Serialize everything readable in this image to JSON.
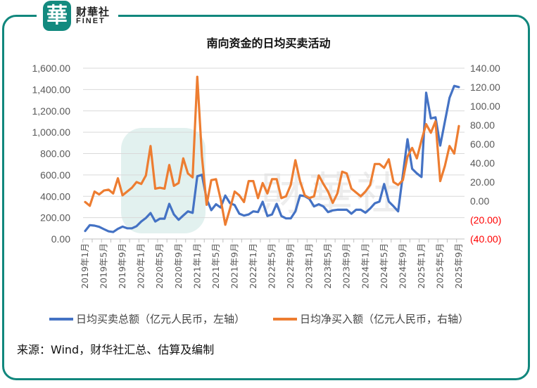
{
  "brand": {
    "logo_char": "華",
    "name_cn": "财華社",
    "name_en": "FINET"
  },
  "chart_data": {
    "type": "line",
    "title": "南向资金的日均买卖活动",
    "x": [
      "2019-01",
      "2019-02",
      "2019-03",
      "2019-04",
      "2019-05",
      "2019-06",
      "2019-07",
      "2019-08",
      "2019-09",
      "2019-10",
      "2019-11",
      "2019-12",
      "2020-01",
      "2020-02",
      "2020-03",
      "2020-04",
      "2020-05",
      "2020-06",
      "2020-07",
      "2020-08",
      "2020-09",
      "2020-10",
      "2020-11",
      "2020-12",
      "2021-01",
      "2021-02",
      "2021-03",
      "2021-04",
      "2021-05",
      "2021-06",
      "2021-07",
      "2021-08",
      "2021-09",
      "2021-10",
      "2021-11",
      "2021-12",
      "2022-01",
      "2022-02",
      "2022-03",
      "2022-04",
      "2022-05",
      "2022-06",
      "2022-07",
      "2022-08",
      "2022-09",
      "2022-10",
      "2022-11",
      "2022-12",
      "2023-01",
      "2023-02",
      "2023-03",
      "2023-04",
      "2023-05",
      "2023-06",
      "2023-07",
      "2023-08",
      "2023-09",
      "2023-10",
      "2023-11",
      "2023-12",
      "2024-01",
      "2024-02",
      "2024-03",
      "2024-04",
      "2024-05",
      "2024-06",
      "2024-07",
      "2024-08",
      "2024-09",
      "2024-10",
      "2024-11",
      "2024-12",
      "2025-01",
      "2025-02",
      "2025-03",
      "2025-04",
      "2025-05",
      "2025-06",
      "2025-07",
      "2025-08",
      "2025-09"
    ],
    "xtick_labels": [
      "2019年1月",
      "2019年5月",
      "2019年9月",
      "2020年1月",
      "2020年5月",
      "2020年9月",
      "2021年1月",
      "2021年5月",
      "2021年9月",
      "2022年1月",
      "2022年5月",
      "2022年9月",
      "2023年1月",
      "2023年5月",
      "2023年9月",
      "2024年1月",
      "2024年5月",
      "2024年9月",
      "2025年1月",
      "2025年5月",
      "2025年9月"
    ],
    "series": [
      {
        "name": "日均买卖总额（亿元人民币，左轴）",
        "axis": "left",
        "color": "#4472c4",
        "values": [
          75,
          130,
          125,
          114,
          92,
          72,
          65,
          95,
          116,
          100,
          100,
          120,
          164,
          197,
          243,
          164,
          190,
          190,
          329,
          230,
          180,
          220,
          259,
          245,
          588,
          601,
          375,
          270,
          325,
          295,
          407,
          336,
          318,
          237,
          219,
          230,
          259,
          252,
          349,
          215,
          230,
          329,
          215,
          193,
          193,
          259,
          408,
          401,
          375,
          305,
          325,
          305,
          252,
          268,
          274,
          274,
          274,
          237,
          274,
          274,
          246,
          285,
          334,
          351,
          515,
          351,
          307,
          259,
          600,
          934,
          658,
          614,
          581,
          1370,
          1130,
          1140,
          875,
          1099,
          1322,
          1434,
          1423
        ]
      },
      {
        "name": "日均净买入额（亿元人民币，右轴）",
        "axis": "right",
        "color": "#ed7d31",
        "values": [
          -1,
          -5,
          10,
          7,
          11,
          12,
          8,
          24,
          6,
          10,
          14,
          20,
          18,
          27,
          58,
          13,
          14,
          13,
          38,
          16,
          19,
          45,
          29,
          25,
          131,
          47,
          -4,
          22,
          23,
          2,
          -25,
          -8,
          10,
          6,
          -1,
          21,
          21,
          3,
          19,
          8,
          23,
          23,
          3,
          5,
          17,
          43,
          21,
          6,
          3,
          5,
          27,
          18,
          10,
          -2,
          8,
          31,
          29,
          13,
          9,
          5,
          10,
          17,
          39,
          39,
          35,
          44,
          20,
          17,
          22,
          47,
          56,
          45,
          64,
          81,
          72,
          84,
          21,
          37,
          58,
          50,
          79
        ]
      }
    ],
    "left_axis": {
      "ylim": [
        0,
        1600
      ],
      "ticks": [
        "0.00",
        "200.00",
        "400.00",
        "600.00",
        "800.00",
        "1,000.00",
        "1,200.00",
        "1,400.00",
        "1,600.00"
      ]
    },
    "right_axis": {
      "ylim": [
        -40,
        140
      ],
      "ticks": [
        "(40.00)",
        "(20.00)",
        "0.00",
        "20.00",
        "40.00",
        "60.00",
        "80.00",
        "100.00",
        "120.00",
        "140.00"
      ],
      "negative_color": "#ff0000"
    },
    "grid": true,
    "legend_position": "bottom"
  },
  "watermark": "財華社",
  "source": "来源：Wind，财华社汇总、估算及编制"
}
